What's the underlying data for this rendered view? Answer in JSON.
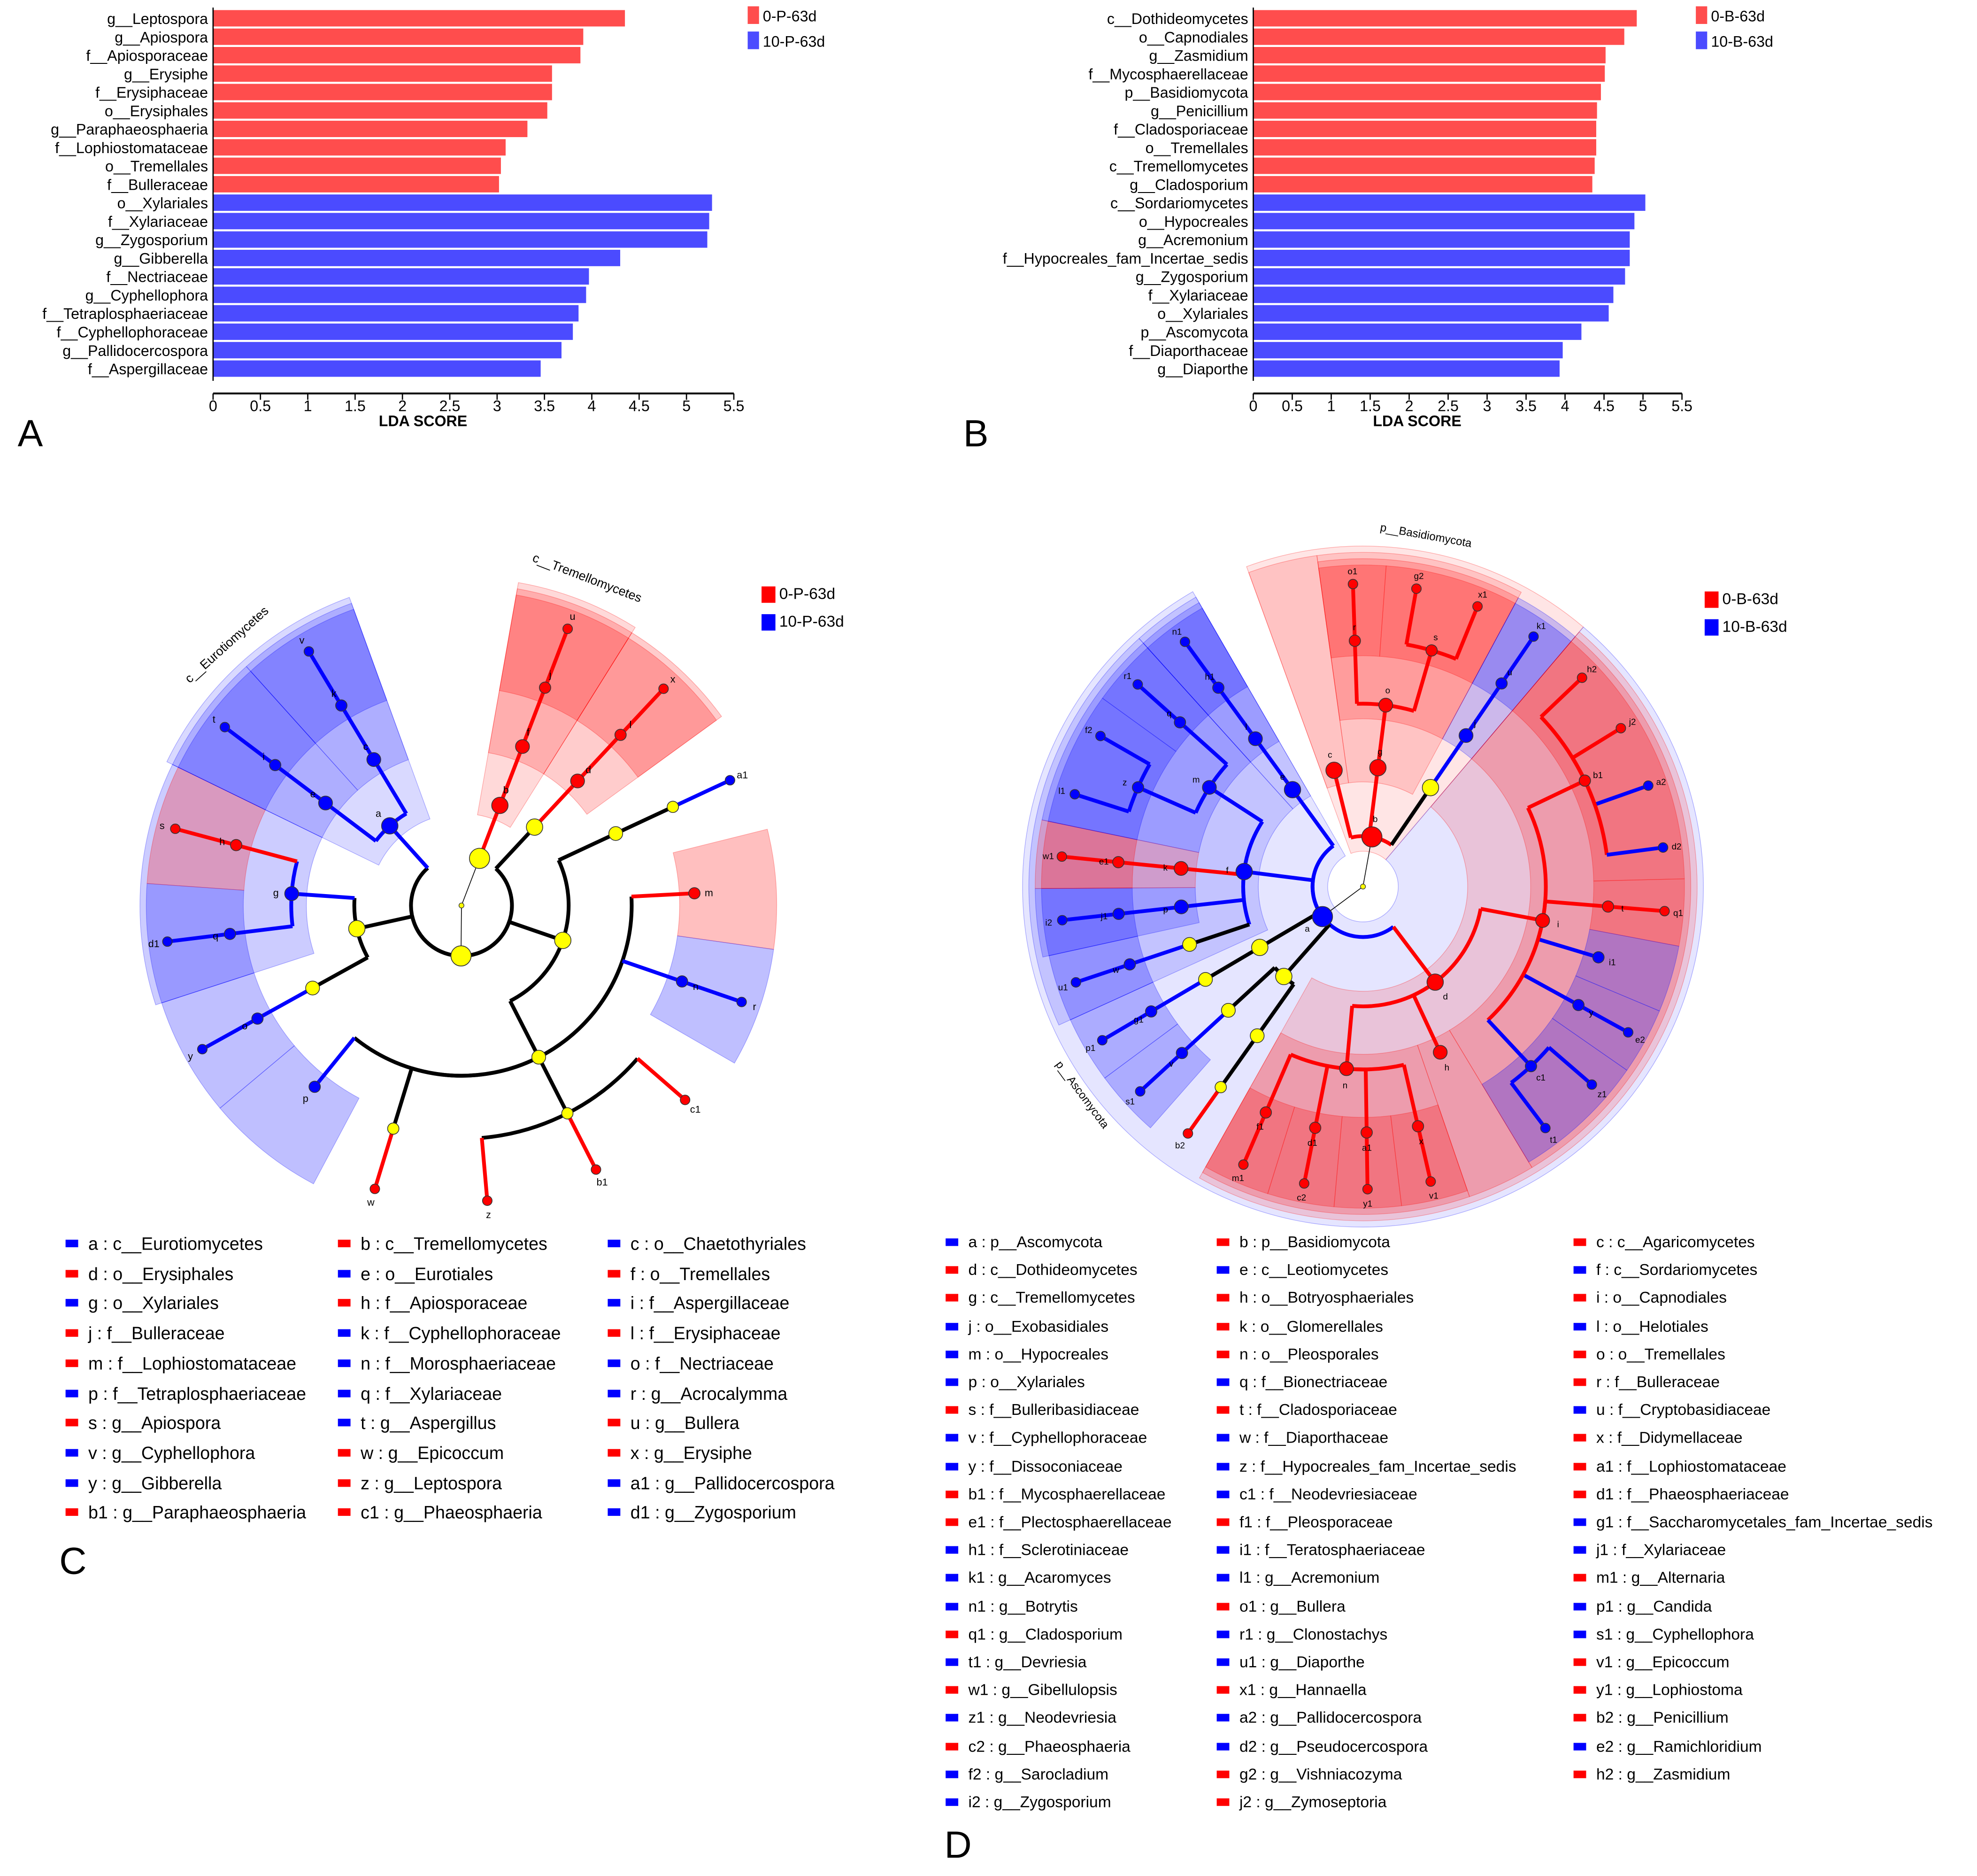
{
  "chart_data": [
    {
      "type": "bar",
      "orientation": "horizontal",
      "panel": "A",
      "xlabel": "LDA SCORE",
      "xlim": [
        0,
        5.5
      ],
      "xticks": [
        "0",
        "0.5",
        "1",
        "1.5",
        "2",
        "2.5",
        "3",
        "3.5",
        "4",
        "4.5",
        "5",
        "5.5"
      ],
      "legend": [
        {
          "name": "0-P-63d",
          "color": "#ff4d4d"
        },
        {
          "name": "10-P-63d",
          "color": "#4b4bff"
        }
      ],
      "legend_position": "top-right",
      "categories": [
        "g__Leptospora",
        "g__Apiospora",
        "f__Apiosporaceae",
        "g__Erysiphe",
        "f__Erysiphaceae",
        "o__Erysiphales",
        "g__Paraphaeosphaeria",
        "f__Lophiostomataceae",
        "o__Tremellales",
        "f__Bulleraceae",
        "o__Xylariales",
        "f__Xylariaceae",
        "g__Zygosporium",
        "g__Gibberella",
        "f__Nectriaceae",
        "g__Cyphellophora",
        "f__Tetraplosphaeriaceae",
        "f__Cyphellophoraceae",
        "g__Pallidocercospora",
        "f__Aspergillaceae"
      ],
      "values": [
        4.35,
        3.91,
        3.88,
        3.58,
        3.58,
        3.53,
        3.32,
        3.09,
        3.04,
        3.02,
        5.27,
        5.24,
        5.22,
        4.3,
        3.97,
        3.94,
        3.86,
        3.8,
        3.68,
        3.46
      ],
      "groups": [
        0,
        0,
        0,
        0,
        0,
        0,
        0,
        0,
        0,
        0,
        1,
        1,
        1,
        1,
        1,
        1,
        1,
        1,
        1,
        1
      ]
    },
    {
      "type": "bar",
      "orientation": "horizontal",
      "panel": "B",
      "xlabel": "LDA SCORE",
      "xlim": [
        0,
        5.5
      ],
      "xticks": [
        "0",
        "0.5",
        "1",
        "1.5",
        "2",
        "2.5",
        "3",
        "3.5",
        "4",
        "4.5",
        "5",
        "5.5"
      ],
      "legend": [
        {
          "name": "0-B-63d",
          "color": "#ff4d4d"
        },
        {
          "name": "10-B-63d",
          "color": "#4b4bff"
        }
      ],
      "legend_position": "top-right",
      "categories": [
        "c__Dothideomycetes",
        "o__Capnodiales",
        "g__Zasmidium",
        "f__Mycosphaerellaceae",
        "p__Basidiomycota",
        "g__Penicillium",
        "f__Cladosporiaceae",
        "o__Tremellales",
        "c__Tremellomycetes",
        "g__Cladosporium",
        "c__Sordariomycetes",
        "o__Hypocreales",
        "g__Acremonium",
        "f__Hypocreales_fam_Incertae_sedis",
        "g__Zygosporium",
        "f__Xylariaceae",
        "o__Xylariales",
        "p__Ascomycota",
        "f__Diaporthaceae",
        "g__Diaporthe"
      ],
      "values": [
        4.92,
        4.76,
        4.52,
        4.51,
        4.46,
        4.41,
        4.4,
        4.4,
        4.38,
        4.35,
        5.03,
        4.89,
        4.83,
        4.83,
        4.77,
        4.62,
        4.56,
        4.21,
        3.97,
        3.93
      ],
      "groups": [
        0,
        0,
        0,
        0,
        0,
        0,
        0,
        0,
        0,
        0,
        1,
        1,
        1,
        1,
        1,
        1,
        1,
        1,
        1,
        1
      ]
    }
  ],
  "panel_labels": {
    "a": "A",
    "b": "B",
    "c": "C",
    "d": "D"
  },
  "colors": {
    "red": "#ff0000",
    "blue": "#0000ff",
    "yellow": "#ffff00"
  },
  "cladogram_c": {
    "groups": [
      {
        "name": "0-P-63d",
        "color": "#ff0000"
      },
      {
        "name": "10-P-63d",
        "color": "#0000ff"
      }
    ],
    "legend": [
      {
        "letter": "a",
        "name": "c__Eurotiomycetes",
        "g": 1
      },
      {
        "letter": "b",
        "name": "c__Tremellomycetes",
        "g": 0
      },
      {
        "letter": "c",
        "name": "o__Chaetothyriales",
        "g": 1
      },
      {
        "letter": "d",
        "name": "o__Erysiphales",
        "g": 0
      },
      {
        "letter": "e",
        "name": "o__Eurotiales",
        "g": 1
      },
      {
        "letter": "f",
        "name": "o__Tremellales",
        "g": 0
      },
      {
        "letter": "g",
        "name": "o__Xylariales",
        "g": 1
      },
      {
        "letter": "h",
        "name": "f__Apiosporaceae",
        "g": 0
      },
      {
        "letter": "i",
        "name": "f__Aspergillaceae",
        "g": 1
      },
      {
        "letter": "j",
        "name": "f__Bulleraceae",
        "g": 0
      },
      {
        "letter": "k",
        "name": "f__Cyphellophoraceae",
        "g": 1
      },
      {
        "letter": "l",
        "name": "f__Erysiphaceae",
        "g": 0
      },
      {
        "letter": "m",
        "name": "f__Lophiostomataceae",
        "g": 0
      },
      {
        "letter": "n",
        "name": "f__Morosphaeriaceae",
        "g": 1
      },
      {
        "letter": "o",
        "name": "f__Nectriaceae",
        "g": 1
      },
      {
        "letter": "p",
        "name": "f__Tetraplosphaeriaceae",
        "g": 1
      },
      {
        "letter": "q",
        "name": "f__Xylariaceae",
        "g": 1
      },
      {
        "letter": "r",
        "name": "g__Acrocalymma",
        "g": 1
      },
      {
        "letter": "s",
        "name": "g__Apiospora",
        "g": 0
      },
      {
        "letter": "t",
        "name": "g__Aspergillus",
        "g": 1
      },
      {
        "letter": "u",
        "name": "g__Bullera",
        "g": 0
      },
      {
        "letter": "v",
        "name": "g__Cyphellophora",
        "g": 1
      },
      {
        "letter": "w",
        "name": "g__Epicoccum",
        "g": 0
      },
      {
        "letter": "x",
        "name": "g__Erysiphe",
        "g": 0
      },
      {
        "letter": "y",
        "name": "g__Gibberella",
        "g": 1
      },
      {
        "letter": "z",
        "name": "g__Leptospora",
        "g": 0
      },
      {
        "letter": "a1",
        "name": "g__Pallidocercospora",
        "g": 1
      },
      {
        "letter": "b1",
        "name": "g__Paraphaeosphaeria",
        "g": 0
      },
      {
        "letter": "c1",
        "name": "g__Phaeosphaeria",
        "g": 0
      },
      {
        "letter": "d1",
        "name": "g__Zygosporium",
        "g": 1
      }
    ],
    "tree": [
      [
        "_B",
        "root",
        "p"
      ],
      [
        "b",
        "_B",
        "c"
      ],
      [
        "f",
        "b",
        "o"
      ],
      [
        "j",
        "f",
        "f"
      ],
      [
        "u",
        "j",
        "g"
      ],
      [
        "_A",
        "root",
        "p"
      ],
      [
        "_L",
        "_A",
        "c"
      ],
      [
        "d",
        "_L",
        "o"
      ],
      [
        "l",
        "d",
        "f"
      ],
      [
        "x",
        "l",
        "g"
      ],
      [
        "_D",
        "_A",
        "c"
      ],
      [
        "_C",
        "_D",
        "o"
      ],
      [
        "_My",
        "_C",
        "f"
      ],
      [
        "a1",
        "_My",
        "g"
      ],
      [
        "_P",
        "_D",
        "o"
      ],
      [
        "m",
        "_P",
        "f"
      ],
      [
        "n",
        "_P",
        "f"
      ],
      [
        "r",
        "n",
        "g"
      ],
      [
        "_Ph",
        "_P",
        "f"
      ],
      [
        "c1",
        "_Ph",
        "g"
      ],
      [
        "b1",
        "_Ph",
        "g"
      ],
      [
        "z",
        "_Ph",
        "g"
      ],
      [
        "_Di",
        "_P",
        "f"
      ],
      [
        "w",
        "_Di",
        "g"
      ],
      [
        "p",
        "_P",
        "f"
      ],
      [
        "_S",
        "_A",
        "c"
      ],
      [
        "_H",
        "_S",
        "o"
      ],
      [
        "o",
        "_H",
        "f"
      ],
      [
        "y",
        "o",
        "g"
      ],
      [
        "g",
        "_S",
        "o"
      ],
      [
        "q",
        "g",
        "f"
      ],
      [
        "d1",
        "q",
        "g"
      ],
      [
        "h",
        "g",
        "f"
      ],
      [
        "s",
        "h",
        "g"
      ],
      [
        "a",
        "_A",
        "c"
      ],
      [
        "e",
        "a",
        "o"
      ],
      [
        "i",
        "e",
        "f"
      ],
      [
        "t",
        "i",
        "g"
      ],
      [
        "c",
        "a",
        "o"
      ],
      [
        "k",
        "c",
        "f"
      ],
      [
        "v",
        "k",
        "g"
      ]
    ],
    "clade_labels": [
      {
        "node": "b",
        "text": "c__Tremellomycetes"
      },
      {
        "node": "a",
        "text": "c__Eurotiomycetes"
      }
    ]
  },
  "cladogram_d": {
    "groups": [
      {
        "name": "0-B-63d",
        "color": "#ff0000"
      },
      {
        "name": "10-B-63d",
        "color": "#0000ff"
      }
    ],
    "legend": [
      {
        "letter": "a",
        "name": "p__Ascomycota",
        "g": 1
      },
      {
        "letter": "b",
        "name": "p__Basidiomycota",
        "g": 0
      },
      {
        "letter": "c",
        "name": "c__Agaricomycetes",
        "g": 0
      },
      {
        "letter": "d",
        "name": "c__Dothideomycetes",
        "g": 0
      },
      {
        "letter": "e",
        "name": "c__Leotiomycetes",
        "g": 1
      },
      {
        "letter": "f",
        "name": "c__Sordariomycetes",
        "g": 1
      },
      {
        "letter": "g",
        "name": "c__Tremellomycetes",
        "g": 0
      },
      {
        "letter": "h",
        "name": "o__Botryosphaeriales",
        "g": 0
      },
      {
        "letter": "i",
        "name": "o__Capnodiales",
        "g": 0
      },
      {
        "letter": "j",
        "name": "o__Exobasidiales",
        "g": 1
      },
      {
        "letter": "k",
        "name": "o__Glomerellales",
        "g": 0
      },
      {
        "letter": "l",
        "name": "o__Helotiales",
        "g": 1
      },
      {
        "letter": "m",
        "name": "o__Hypocreales",
        "g": 1
      },
      {
        "letter": "n",
        "name": "o__Pleosporales",
        "g": 0
      },
      {
        "letter": "o",
        "name": "o__Tremellales",
        "g": 0
      },
      {
        "letter": "p",
        "name": "o__Xylariales",
        "g": 1
      },
      {
        "letter": "q",
        "name": "f__Bionectriaceae",
        "g": 1
      },
      {
        "letter": "r",
        "name": "f__Bulleraceae",
        "g": 0
      },
      {
        "letter": "s",
        "name": "f__Bulleribasidiaceae",
        "g": 0
      },
      {
        "letter": "t",
        "name": "f__Cladosporiaceae",
        "g": 0
      },
      {
        "letter": "u",
        "name": "f__Cryptobasidiaceae",
        "g": 1
      },
      {
        "letter": "v",
        "name": "f__Cyphellophoraceae",
        "g": 1
      },
      {
        "letter": "w",
        "name": "f__Diaporthaceae",
        "g": 1
      },
      {
        "letter": "x",
        "name": "f__Didymellaceae",
        "g": 0
      },
      {
        "letter": "y",
        "name": "f__Dissoconiaceae",
        "g": 1
      },
      {
        "letter": "z",
        "name": "f__Hypocreales_fam_Incertae_sedis",
        "g": 1
      },
      {
        "letter": "a1",
        "name": "f__Lophiostomataceae",
        "g": 0
      },
      {
        "letter": "b1",
        "name": "f__Mycosphaerellaceae",
        "g": 0
      },
      {
        "letter": "c1",
        "name": "f__Neodevriesiaceae",
        "g": 1
      },
      {
        "letter": "d1",
        "name": "f__Phaeosphaeriaceae",
        "g": 0
      },
      {
        "letter": "e1",
        "name": "f__Plectosphaerellaceae",
        "g": 0
      },
      {
        "letter": "f1",
        "name": "f__Pleosporaceae",
        "g": 0
      },
      {
        "letter": "g1",
        "name": "f__Saccharomycetales_fam_Incertae_sedis",
        "g": 1
      },
      {
        "letter": "h1",
        "name": "f__Sclerotiniaceae",
        "g": 1
      },
      {
        "letter": "i1",
        "name": "f__Teratosphaeriaceae",
        "g": 1
      },
      {
        "letter": "j1",
        "name": "f__Xylariaceae",
        "g": 1
      },
      {
        "letter": "k1",
        "name": "g__Acaromyces",
        "g": 1
      },
      {
        "letter": "l1",
        "name": "g__Acremonium",
        "g": 1
      },
      {
        "letter": "m1",
        "name": "g__Alternaria",
        "g": 0
      },
      {
        "letter": "n1",
        "name": "g__Botrytis",
        "g": 1
      },
      {
        "letter": "o1",
        "name": "g__Bullera",
        "g": 0
      },
      {
        "letter": "p1",
        "name": "g__Candida",
        "g": 1
      },
      {
        "letter": "q1",
        "name": "g__Cladosporium",
        "g": 0
      },
      {
        "letter": "r1",
        "name": "g__Clonostachys",
        "g": 1
      },
      {
        "letter": "s1",
        "name": "g__Cyphellophora",
        "g": 1
      },
      {
        "letter": "t1",
        "name": "g__Devriesia",
        "g": 1
      },
      {
        "letter": "u1",
        "name": "g__Diaporthe",
        "g": 1
      },
      {
        "letter": "v1",
        "name": "g__Epicoccum",
        "g": 0
      },
      {
        "letter": "w1",
        "name": "g__Gibellulopsis",
        "g": 0
      },
      {
        "letter": "x1",
        "name": "g__Hannaella",
        "g": 0
      },
      {
        "letter": "y1",
        "name": "g__Lophiostoma",
        "g": 0
      },
      {
        "letter": "z1",
        "name": "g__Neodevriesia",
        "g": 1
      },
      {
        "letter": "a2",
        "name": "g__Pallidocercospora",
        "g": 1
      },
      {
        "letter": "b2",
        "name": "g__Penicillium",
        "g": 0
      },
      {
        "letter": "c2",
        "name": "g__Phaeosphaeria",
        "g": 0
      },
      {
        "letter": "d2",
        "name": "g__Pseudocercospora",
        "g": 1
      },
      {
        "letter": "e2",
        "name": "g__Ramichloridium",
        "g": 1
      },
      {
        "letter": "f2",
        "name": "g__Sarocladium",
        "g": 1
      },
      {
        "letter": "g2",
        "name": "g__Vishniacozyma",
        "g": 0
      },
      {
        "letter": "h2",
        "name": "g__Zasmidium",
        "g": 0
      },
      {
        "letter": "i2",
        "name": "g__Zygosporium",
        "g": 1
      },
      {
        "letter": "j2",
        "name": "g__Zymoseptoria",
        "g": 0
      }
    ],
    "tree": [
      [
        "b",
        "root",
        "p"
      ],
      [
        "c",
        "b",
        "c"
      ],
      [
        "g",
        "b",
        "c"
      ],
      [
        "o",
        "g",
        "o"
      ],
      [
        "r",
        "o",
        "f"
      ],
      [
        "o1",
        "r",
        "g"
      ],
      [
        "s",
        "o",
        "f"
      ],
      [
        "g2",
        "s",
        "g"
      ],
      [
        "x1",
        "s",
        "g"
      ],
      [
        "_U",
        "b",
        "c"
      ],
      [
        "j",
        "_U",
        "o"
      ],
      [
        "u",
        "j",
        "f"
      ],
      [
        "k1",
        "u",
        "g"
      ],
      [
        "a",
        "root",
        "p"
      ],
      [
        "d",
        "a",
        "c"
      ],
      [
        "i",
        "d",
        "o"
      ],
      [
        "b1",
        "i",
        "f"
      ],
      [
        "h2",
        "b1",
        "g"
      ],
      [
        "j2",
        "b1",
        "g"
      ],
      [
        "a2",
        "b1",
        "g"
      ],
      [
        "d2",
        "b1",
        "g"
      ],
      [
        "t",
        "i",
        "f"
      ],
      [
        "q1",
        "t",
        "g"
      ],
      [
        "i1",
        "i",
        "f"
      ],
      [
        "y",
        "i",
        "f"
      ],
      [
        "e2",
        "y",
        "g"
      ],
      [
        "c1",
        "i",
        "f"
      ],
      [
        "z1",
        "c1",
        "g"
      ],
      [
        "t1",
        "c1",
        "g"
      ],
      [
        "h",
        "d",
        "o"
      ],
      [
        "n",
        "d",
        "o"
      ],
      [
        "x",
        "n",
        "f"
      ],
      [
        "v1",
        "x",
        "g"
      ],
      [
        "a1",
        "n",
        "f"
      ],
      [
        "y1",
        "a1",
        "g"
      ],
      [
        "d1",
        "n",
        "f"
      ],
      [
        "c2",
        "d1",
        "g"
      ],
      [
        "f1",
        "n",
        "f"
      ],
      [
        "m1",
        "f1",
        "g"
      ],
      [
        "_E",
        "a",
        "c"
      ],
      [
        "_Eo",
        "_E",
        "o"
      ],
      [
        "_As",
        "_Eo",
        "f"
      ],
      [
        "b2",
        "_As",
        "g"
      ],
      [
        "_Ch",
        "_E",
        "o"
      ],
      [
        "v",
        "_Ch",
        "f"
      ],
      [
        "s1",
        "v",
        "g"
      ],
      [
        "_Sa",
        "a",
        "c"
      ],
      [
        "_So",
        "_Sa",
        "o"
      ],
      [
        "g1",
        "_So",
        "f"
      ],
      [
        "p1",
        "g1",
        "g"
      ],
      [
        "f",
        "a",
        "c"
      ],
      [
        "_Dp",
        "f",
        "o"
      ],
      [
        "w",
        "_Dp",
        "f"
      ],
      [
        "u1",
        "w",
        "g"
      ],
      [
        "p",
        "f",
        "o"
      ],
      [
        "j1",
        "p",
        "f"
      ],
      [
        "i2",
        "j1",
        "g"
      ],
      [
        "k",
        "f",
        "o"
      ],
      [
        "e1",
        "k",
        "f"
      ],
      [
        "w1",
        "e1",
        "g"
      ],
      [
        "m",
        "f",
        "o"
      ],
      [
        "z",
        "m",
        "f"
      ],
      [
        "l1",
        "z",
        "g"
      ],
      [
        "f2",
        "z",
        "g"
      ],
      [
        "q",
        "m",
        "f"
      ],
      [
        "r1",
        "q",
        "g"
      ],
      [
        "e",
        "a",
        "c"
      ],
      [
        "l",
        "e",
        "o"
      ],
      [
        "h1",
        "l",
        "f"
      ],
      [
        "n1",
        "h1",
        "g"
      ]
    ],
    "clade_labels": [
      {
        "node": "b",
        "text": "p__Basidiomycota"
      },
      {
        "node": "a",
        "text": "p__Ascomycota"
      }
    ]
  }
}
